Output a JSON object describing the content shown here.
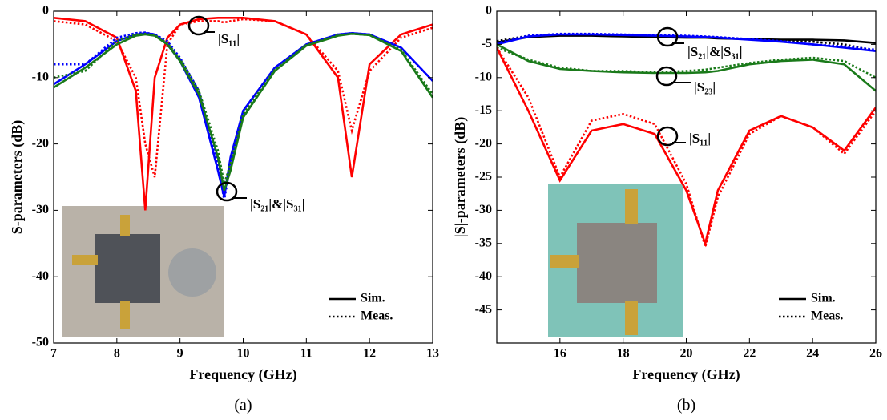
{
  "chart_data": [
    {
      "type": "line",
      "x_label": "Frequency (GHz)",
      "y_label": "S-parameters (dB)",
      "caption": "(a)",
      "xlim": [
        7,
        13
      ],
      "xticks": [
        7,
        8,
        9,
        10,
        11,
        12,
        13
      ],
      "ylim": [
        -50,
        0
      ],
      "yticks": [
        0,
        -10,
        -20,
        -30,
        -40,
        -50
      ],
      "x": [
        7,
        7.5,
        8,
        8.3,
        8.45,
        8.6,
        8.8,
        9,
        9.3,
        9.6,
        9.7,
        9.8,
        10,
        10.5,
        11,
        11.5,
        11.72,
        12,
        12.5,
        13
      ],
      "series": [
        {
          "color": "#ff0000",
          "dash": false,
          "values": [
            -1,
            -1.5,
            -4,
            -12,
            -30,
            -10,
            -4,
            -2,
            -1.2,
            -1,
            -1,
            -1,
            -1,
            -1.5,
            -3.5,
            -10,
            -25,
            -8,
            -3.5,
            -2
          ]
        },
        {
          "color": "#ff0000",
          "dash": true,
          "values": [
            -1.5,
            -2,
            -4.5,
            -10,
            -20,
            -25,
            -5,
            -2,
            -1.5,
            -1.5,
            -1.7,
            -1.5,
            -1.2,
            -1.5,
            -3.5,
            -9,
            -18,
            -9,
            -4,
            -2.5
          ]
        },
        {
          "color": "#0000ff",
          "dash": false,
          "values": [
            -11,
            -8,
            -4.5,
            -3.5,
            -3.3,
            -3.5,
            -5,
            -7.5,
            -13,
            -24,
            -28,
            -22,
            -15,
            -8.5,
            -5,
            -3.5,
            -3.3,
            -3.5,
            -5.5,
            -10.5
          ]
        },
        {
          "color": "#0000ff",
          "dash": true,
          "values": [
            -8,
            -8,
            -4,
            -3.3,
            -3.2,
            -3.5,
            -4.5,
            -7,
            -12,
            -23,
            -28.5,
            -23,
            -15,
            -8.5,
            -5,
            -3.5,
            -3.3,
            -3.5,
            -5.5,
            -10.5
          ]
        },
        {
          "color": "#1a7a1a",
          "dash": false,
          "values": [
            -11.5,
            -8.5,
            -5,
            -3.7,
            -3.5,
            -3.7,
            -5,
            -7.5,
            -12.5,
            -22,
            -27,
            -24,
            -16,
            -9,
            -5.2,
            -3.7,
            -3.4,
            -3.6,
            -6,
            -13
          ]
        },
        {
          "color": "#1a7a1a",
          "dash": true,
          "values": [
            -10,
            -9,
            -4.5,
            -3.5,
            -3.4,
            -3.6,
            -4.8,
            -7.2,
            -12,
            -21,
            -26,
            -23,
            -15.5,
            -8.8,
            -5.1,
            -3.6,
            -3.4,
            -3.6,
            -5.8,
            -12.5
          ]
        }
      ],
      "annotations": [
        "|S₁₁|",
        "|S₂₁|&|S₃₁|"
      ],
      "legend": [
        {
          "label": "Sim.",
          "dash": false
        },
        {
          "label": "Meas.",
          "dash": true
        }
      ]
    },
    {
      "type": "line",
      "x_label": "Frequency (GHz)",
      "y_label": "|S|-parameters (dB)",
      "caption": "(b)",
      "xlim": [
        14,
        26
      ],
      "xticks": [
        16,
        18,
        20,
        22,
        24,
        26
      ],
      "ylim": [
        -50,
        0
      ],
      "yticks": [
        0,
        -5,
        -10,
        -15,
        -20,
        -25,
        -30,
        -35,
        -40,
        -45
      ],
      "x": [
        14,
        15,
        16,
        17,
        18,
        19,
        20,
        20.6,
        21,
        22,
        23,
        24,
        25,
        26
      ],
      "series": [
        {
          "color": "#000000",
          "dash": false,
          "values": [
            -4.7,
            -3.9,
            -3.7,
            -3.7,
            -3.8,
            -3.9,
            -4,
            -4,
            -4.1,
            -4.2,
            -4.3,
            -4.3,
            -4.4,
            -4.8
          ]
        },
        {
          "color": "#000000",
          "dash": true,
          "values": [
            -4.5,
            -3.7,
            -3.5,
            -3.5,
            -3.6,
            -3.7,
            -3.8,
            -3.9,
            -4,
            -4.2,
            -4.4,
            -4.6,
            -5,
            -6
          ]
        },
        {
          "color": "#0000ff",
          "dash": false,
          "values": [
            -5,
            -3.8,
            -3.5,
            -3.5,
            -3.6,
            -3.7,
            -3.8,
            -3.9,
            -4,
            -4.3,
            -4.6,
            -5,
            -5.5,
            -6
          ]
        },
        {
          "color": "#0000ff",
          "dash": true,
          "values": [
            -4.8,
            -3.7,
            -3.4,
            -3.4,
            -3.5,
            -3.6,
            -3.7,
            -3.8,
            -3.9,
            -4.2,
            -4.5,
            -5,
            -5.3,
            -5.8
          ]
        },
        {
          "color": "#1a7a1a",
          "dash": false,
          "values": [
            -5,
            -7.5,
            -8.7,
            -9,
            -9.2,
            -9.3,
            -9.3,
            -9.2,
            -9,
            -8,
            -7.5,
            -7.3,
            -8,
            -12
          ]
        },
        {
          "color": "#1a7a1a",
          "dash": true,
          "values": [
            -5.5,
            -7.3,
            -8.5,
            -9,
            -9,
            -9.2,
            -9,
            -8.8,
            -8.5,
            -7.8,
            -7.3,
            -7,
            -7.5,
            -10
          ]
        },
        {
          "color": "#ff0000",
          "dash": false,
          "values": [
            -5.5,
            -15,
            -25.5,
            -18,
            -17,
            -18.5,
            -27,
            -35,
            -27,
            -18,
            -15.8,
            -17.5,
            -21,
            -14.5
          ]
        },
        {
          "color": "#ff0000",
          "dash": true,
          "values": [
            -5.5,
            -13,
            -25,
            -16.5,
            -15.5,
            -17,
            -26,
            -35.5,
            -28,
            -18.5,
            -15.8,
            -17.5,
            -21.5,
            -15
          ]
        }
      ],
      "annotations": [
        "|S₂₁|&|S₃₁|",
        "|S₂₃|",
        "|S₁₁|"
      ],
      "legend": [
        {
          "label": "Sim.",
          "dash": false
        },
        {
          "label": "Meas.",
          "dash": true
        }
      ]
    }
  ]
}
